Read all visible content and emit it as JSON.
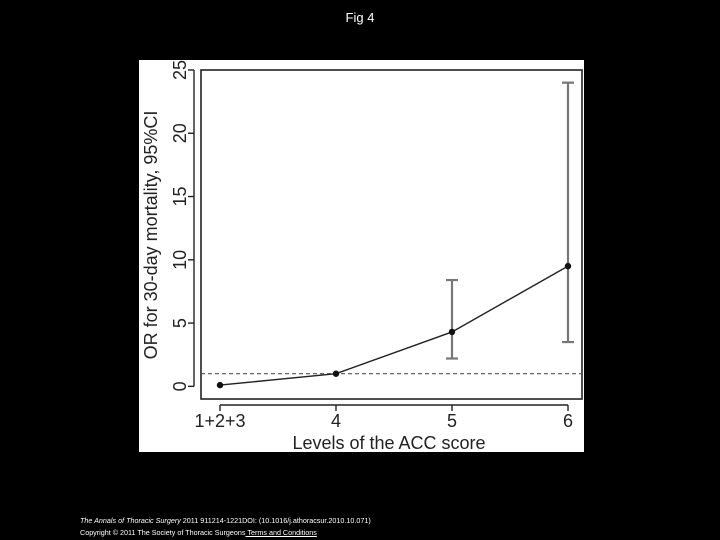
{
  "slide": {
    "title": "Fig 4"
  },
  "chart_data": {
    "type": "line",
    "title": "",
    "xlabel": "Levels of the ACC score",
    "ylabel": "OR for 30-day mortality, 95%CI",
    "categories": [
      "1+2+3",
      "4",
      "5",
      "6"
    ],
    "series": [
      {
        "values": [
          0.1,
          1.0,
          4.3,
          9.5
        ],
        "ci_lower": [
          null,
          null,
          2.2,
          3.5
        ],
        "ci_upper": [
          null,
          null,
          8.4,
          24.0
        ]
      }
    ],
    "reference_line": {
      "y": 1,
      "style": "dashed"
    },
    "ylim": [
      -1,
      25
    ],
    "yticks": [
      0,
      5,
      10,
      15,
      20,
      25
    ],
    "grid": false
  },
  "caption": {
    "journal": "The Annals of Thoracic Surgery",
    "citation": " 2011 911214-1221DOI: (10.1016/j.athoracsur.2010.10.071)",
    "copyright": "Copyright © 2011 The Society of Thoracic Surgeons",
    "link_text": " Terms and Conditions"
  }
}
